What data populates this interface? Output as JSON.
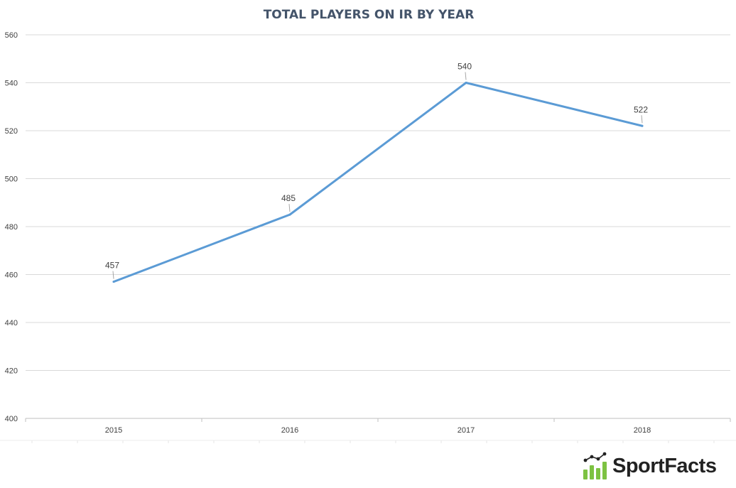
{
  "chart_data": {
    "type": "line",
    "title": "TOTAL PLAYERS ON IR BY YEAR",
    "categories": [
      "2015",
      "2016",
      "2017",
      "2018"
    ],
    "series": [
      {
        "values": [
          457,
          485,
          540,
          522
        ],
        "color": "#5b9bd5"
      }
    ],
    "data_labels": [
      "457",
      "485",
      "540",
      "522"
    ],
    "ylim": [
      400,
      560
    ],
    "yticks": [
      "400",
      "420",
      "440",
      "460",
      "480",
      "500",
      "520",
      "540",
      "560"
    ],
    "grid": true,
    "legend": "none"
  },
  "logo": {
    "text": "SportFacts",
    "bar_color": "#7dc242",
    "dot_color": "#222222"
  }
}
